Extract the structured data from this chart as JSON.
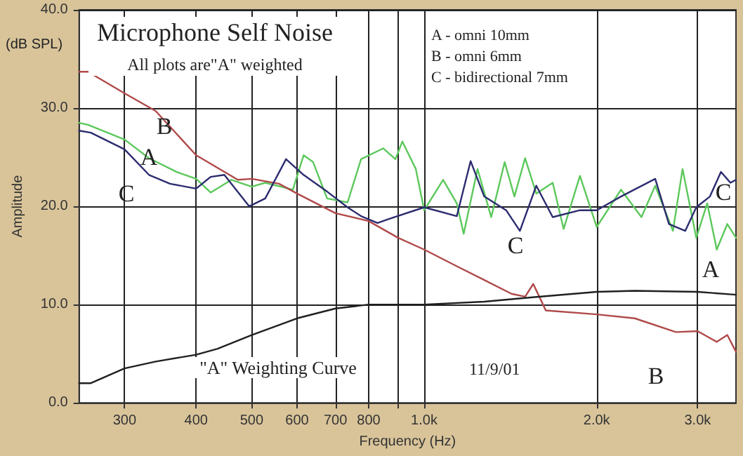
{
  "chart_data": {
    "type": "line",
    "title": "Microphone Self Noise",
    "subtitle": "All plots are\"A\" weighted",
    "xlabel": "Frequency (Hz)",
    "ylabel": "Amplitude",
    "log": "x",
    "grid": true,
    "marker": "none",
    "line_style": "solid",
    "xlim": [
      250,
      3500
    ],
    "ylim": [
      0,
      40
    ],
    "xticks": [
      300,
      400,
      500,
      600,
      700,
      800,
      {
        "value": 900,
        "label": null
      },
      {
        "value": 1000,
        "label": "1.0k"
      },
      {
        "value": 2000,
        "label": "2.0k"
      },
      {
        "value": 3000,
        "label": "3.0k"
      }
    ],
    "yticks": [
      {
        "value": 0,
        "label": "0.0"
      },
      {
        "value": 10,
        "label": "10.0"
      },
      {
        "value": 20,
        "label": "20.0"
      },
      {
        "value": 30,
        "label": "30.0"
      },
      {
        "value": 40,
        "label": "40.0"
      }
    ],
    "series": [
      {
        "color": "#5cc85c",
        "x": [
          250,
          259,
          300,
          331,
          370,
          400,
          424,
          461,
          500,
          528,
          590,
          616,
          640,
          677,
          735,
          776,
          848,
          891,
          916,
          967,
          1000,
          1079,
          1140,
          1172,
          1239,
          1309,
          1382,
          1437,
          1500,
          1569,
          1676,
          1751,
          1870,
          2000,
          2205,
          2394,
          2530,
          2717,
          2824,
          2984,
          3118,
          3240,
          3380,
          3500
        ],
        "values": [
          28.5,
          28.3,
          26.8,
          24.9,
          23.5,
          22.8,
          21.4,
          22.7,
          22.0,
          22.4,
          21.7,
          25.2,
          24.5,
          20.8,
          20.4,
          24.8,
          25.9,
          24.8,
          26.6,
          23.8,
          19.6,
          22.7,
          20.3,
          17.2,
          23.8,
          18.9,
          24.5,
          21.0,
          24.9,
          21.3,
          22.4,
          17.7,
          23.1,
          17.9,
          21.7,
          18.9,
          22.1,
          17.5,
          23.8,
          16.8,
          20.3,
          15.6,
          18.2,
          16.8
        ]
      },
      {
        "color": "#b04a4a",
        "x": [
          250,
          259,
          300,
          340,
          400,
          473,
          500,
          558,
          600,
          700,
          800,
          900,
          1000,
          1140,
          1273,
          1420,
          1500,
          1550,
          1630,
          2000,
          2330,
          2750,
          3000,
          3240,
          3380,
          3500
        ],
        "values": [
          33.7,
          33.7,
          31.5,
          29.7,
          25.2,
          22.7,
          22.8,
          22.3,
          21.3,
          19.3,
          18.5,
          16.8,
          15.6,
          13.9,
          12.5,
          11.1,
          10.8,
          12.1,
          9.4,
          9.0,
          8.6,
          7.2,
          7.3,
          6.2,
          6.9,
          5.2
        ]
      },
      {
        "color": "#2c2c70",
        "x": [
          250,
          262,
          300,
          331,
          360,
          400,
          424,
          448,
          495,
          528,
          574,
          616,
          677,
          735,
          776,
          829,
          866,
          1000,
          1140,
          1205,
          1273,
          1390,
          1469,
          1569,
          1676,
          1870,
          2000,
          2205,
          2530,
          2674,
          2855,
          2984,
          3152,
          3295,
          3423,
          3500
        ],
        "values": [
          27.7,
          27.5,
          25.8,
          23.2,
          22.3,
          21.8,
          23.0,
          23.2,
          20.0,
          20.8,
          24.8,
          23.2,
          21.5,
          19.9,
          19.0,
          18.3,
          18.7,
          19.9,
          19.0,
          24.6,
          21.0,
          19.6,
          17.5,
          22.1,
          18.9,
          19.6,
          19.6,
          21.0,
          22.8,
          18.2,
          17.5,
          19.9,
          21.0,
          23.5,
          22.4,
          22.7
        ]
      },
      {
        "color": "#202020",
        "x": [
          250,
          262,
          300,
          340,
          400,
          436,
          500,
          600,
          700,
          800,
          1000,
          1273,
          1586,
          2000,
          2330,
          3000,
          3500
        ],
        "values": [
          2.0,
          2.0,
          3.5,
          4.2,
          4.9,
          5.5,
          6.9,
          8.6,
          9.6,
          10.0,
          10.0,
          10.3,
          10.8,
          11.3,
          11.4,
          11.3,
          11.0
        ]
      }
    ],
    "annotations": [
      "(dB SPL)",
      "A - omni 10mm",
      "B - omni 6mm",
      "C - bidirectional 7mm",
      "11/9/01",
      "B",
      "A",
      "C",
      "C",
      "B",
      "A",
      "C",
      "\"A\" Weighting Curve"
    ]
  }
}
